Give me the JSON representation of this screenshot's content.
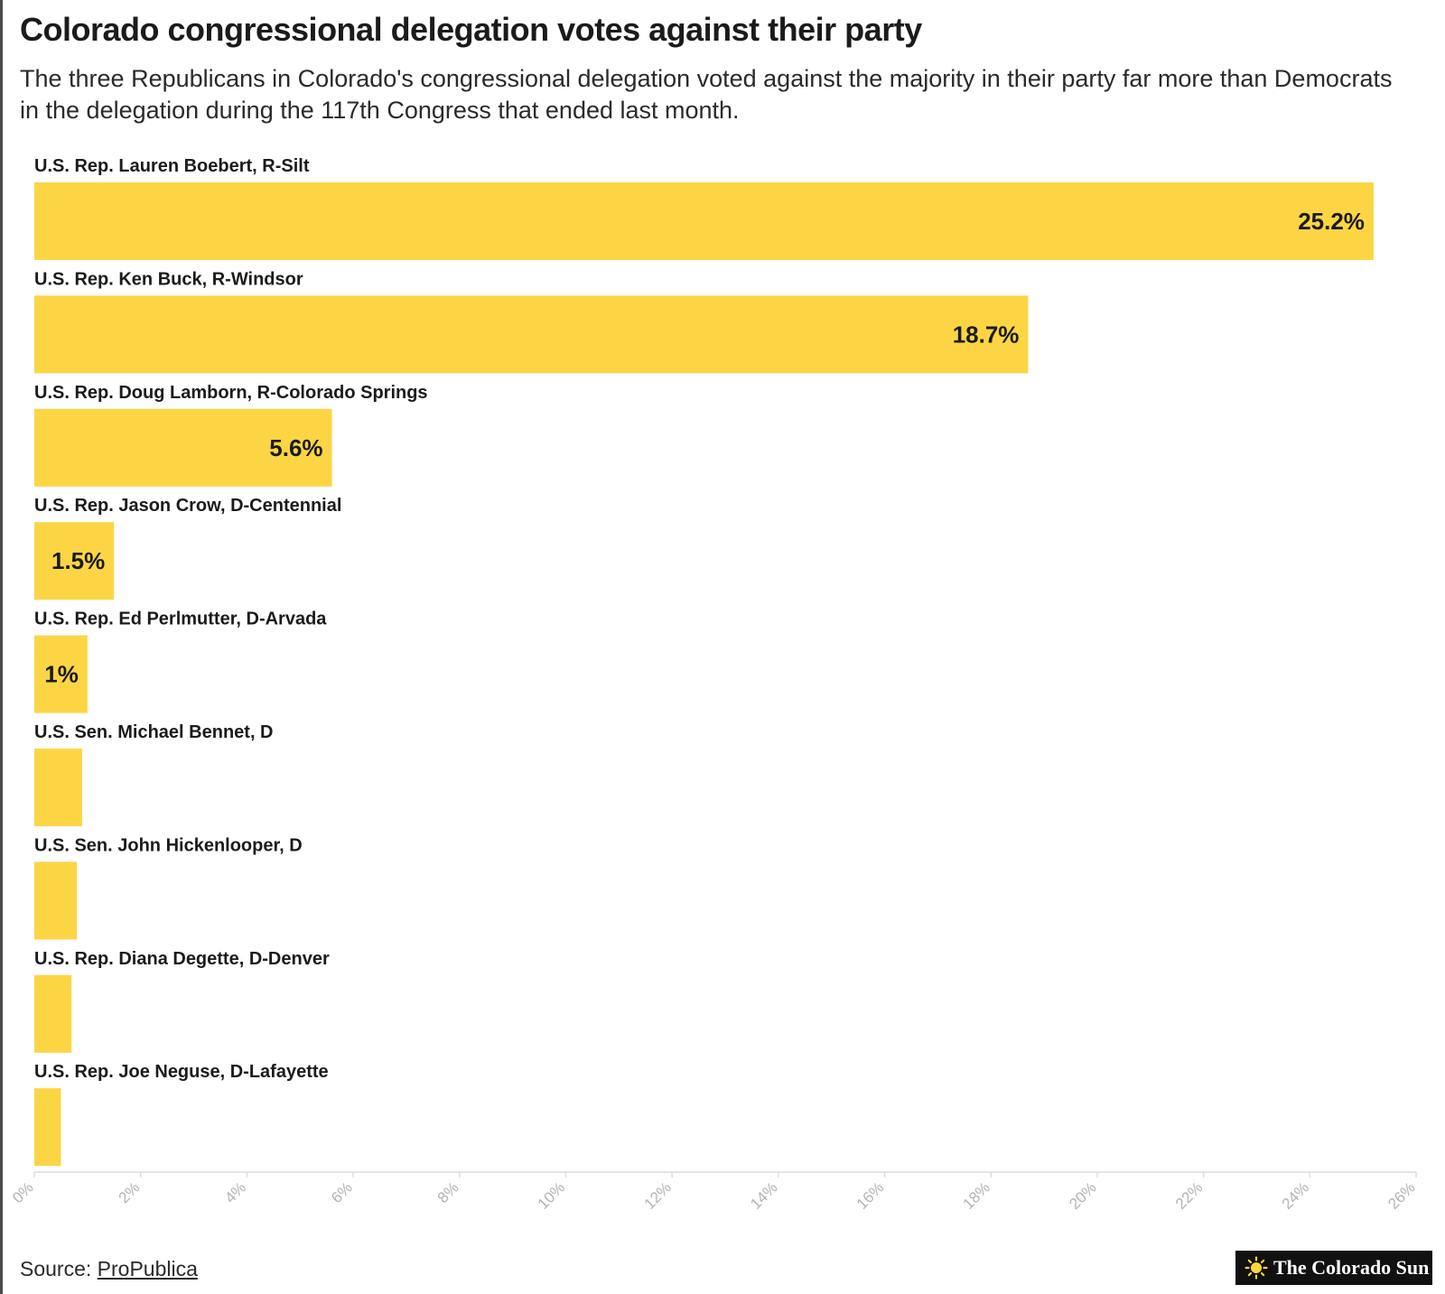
{
  "header": {
    "title": "Colorado congressional delegation votes against their party",
    "subtitle": "The three Republicans in Colorado's congressional delegation voted against the majority in their party far more than Democrats in the delegation during the 117th Congress that ended last month."
  },
  "footer": {
    "source_prefix": "Source: ",
    "source_link": "ProPublica",
    "logo_text": "The Colorado Sun"
  },
  "colors": {
    "bar": "#fcd545",
    "axis": "#dcdcdc",
    "tick_label": "#b3b3b3",
    "text": "#1b1b1b"
  },
  "chart_data": {
    "type": "bar",
    "orientation": "horizontal",
    "categories": [
      "U.S. Rep. Lauren Boebert, R-Silt",
      "U.S. Rep. Ken Buck, R-Windsor",
      "U.S. Rep. Doug Lamborn, R-Colorado Springs",
      "U.S. Rep. Jason Crow, D-Centennial",
      "U.S. Rep. Ed Perlmutter, D-Arvada",
      "U.S. Sen. Michael Bennet, D",
      "U.S. Sen. John Hickenlooper, D",
      "U.S. Rep. Diana Degette, D-Denver",
      "U.S. Rep. Joe Neguse, D-Lafayette"
    ],
    "values": [
      25.2,
      18.7,
      5.6,
      1.5,
      1,
      0.9,
      0.8,
      0.7,
      0.5
    ],
    "value_labels": [
      "25.2%",
      "18.7%",
      "5.6%",
      "1.5%",
      "1%",
      "",
      "",
      "",
      ""
    ],
    "xlim": [
      0,
      26
    ],
    "xticks": [
      0,
      2,
      4,
      6,
      8,
      10,
      12,
      14,
      16,
      18,
      20,
      22,
      24,
      26
    ],
    "xtick_labels": [
      "0%",
      "2%",
      "4%",
      "6%",
      "8%",
      "10%",
      "12%",
      "14%",
      "16%",
      "18%",
      "20%",
      "22%",
      "24%",
      "26%"
    ],
    "grid": false,
    "legend": "none"
  }
}
